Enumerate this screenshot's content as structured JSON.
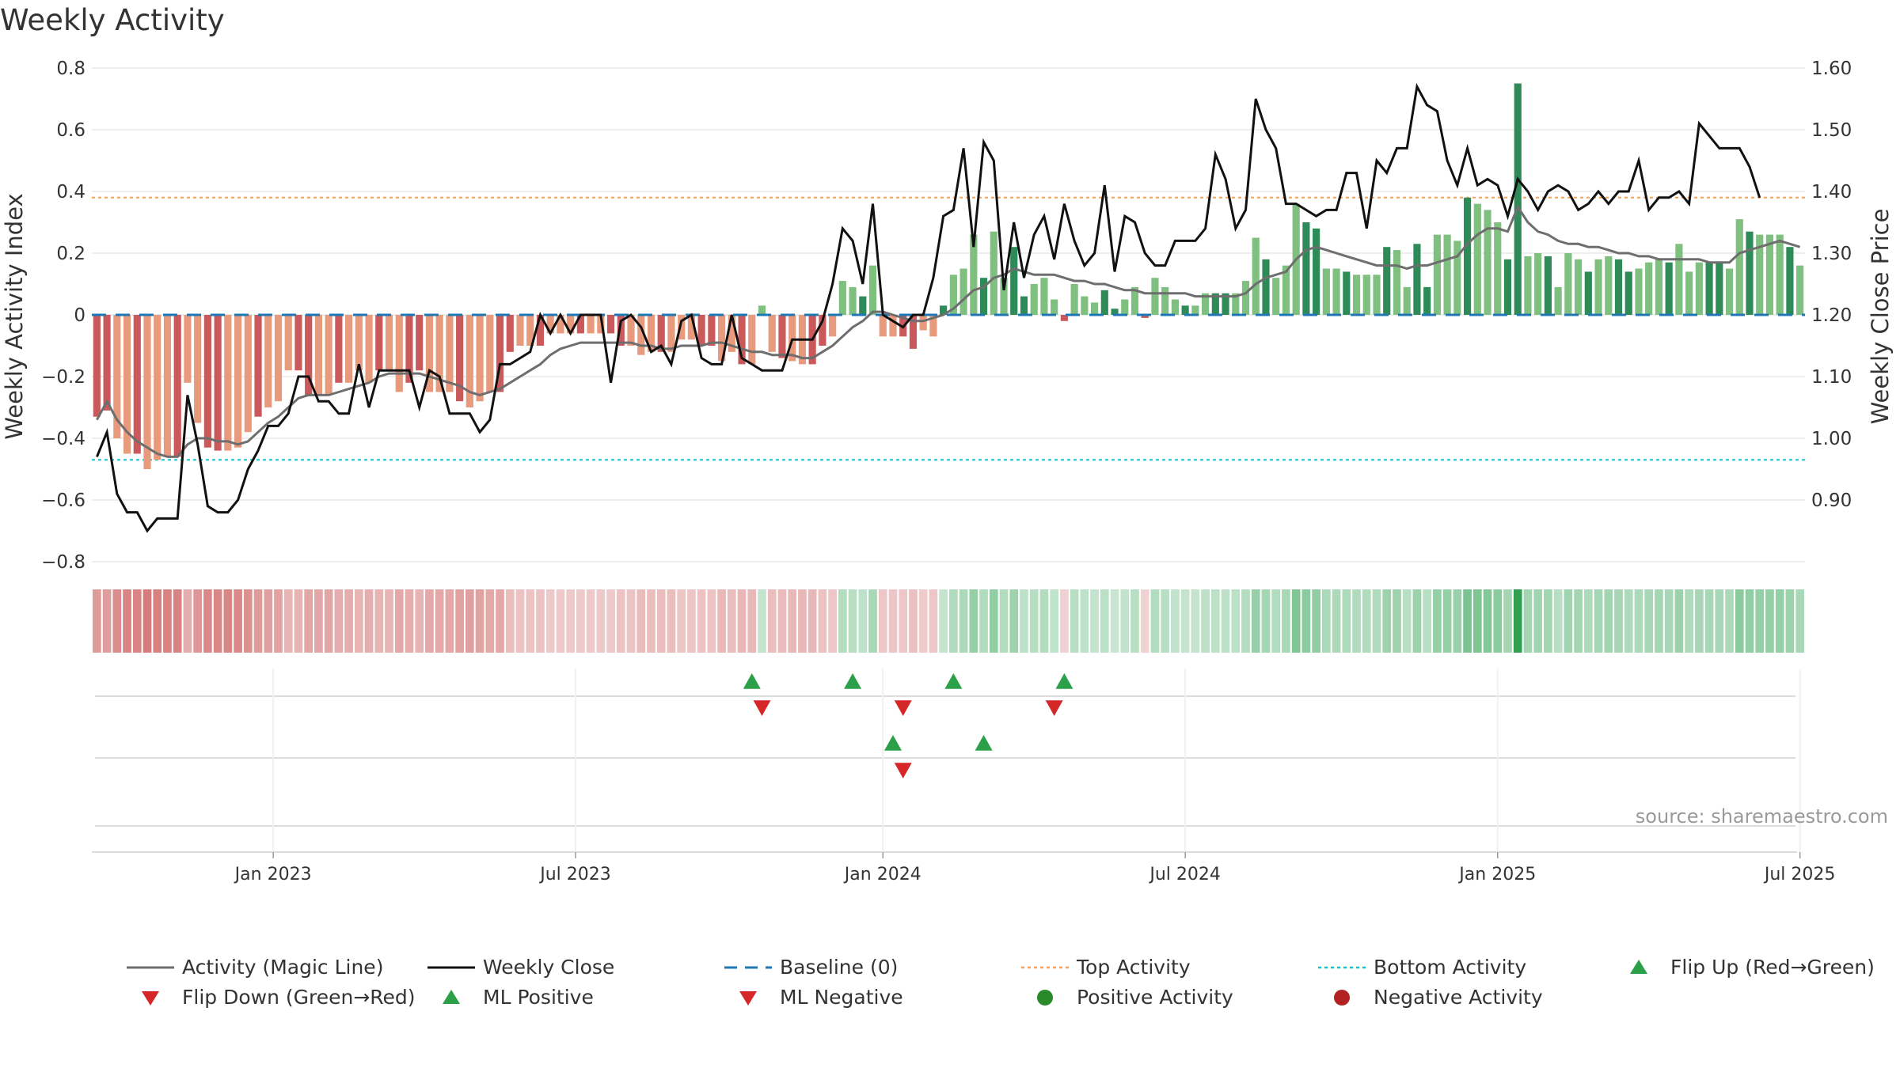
{
  "title": "Weekly Activity",
  "source": "source: sharemaestro.com",
  "colors": {
    "pos_dark": "#2e8b57",
    "pos_light": "#7fbf7f",
    "neg_dark": "#c9595a",
    "neg_light": "#e89a7c",
    "magic": "#6e6e6e",
    "close": "#111111",
    "baseline": "#1f77b4",
    "top": "#f5a25d",
    "bottom": "#17c3cc",
    "flip_up": "#2ca048",
    "flip_down": "#d62728"
  },
  "chart_data": {
    "type": "bar",
    "title": "Weekly Activity",
    "ylabel": "Weekly Activity Index",
    "y2label": "Weekly Close Price",
    "ylim": [
      -0.8,
      0.8
    ],
    "y2lim": [
      0.8,
      1.6
    ],
    "yticks": [
      "0.8",
      "0.6",
      "0.4",
      "0.2",
      "0",
      "−0.2",
      "−0.4",
      "−0.6",
      "−0.8"
    ],
    "y2ticks": [
      "1.60",
      "1.50",
      "1.40",
      "1.30",
      "1.20",
      "1.10",
      "1.00",
      "0.90"
    ],
    "top_activity": 0.38,
    "bottom_activity": -0.47,
    "baseline": 0,
    "date_labels": [
      "Jan 2023",
      "Jul 2023",
      "Jan 2024",
      "Jul 2024",
      "Jan 2025",
      "Jul 2025"
    ],
    "date_label_weeks": [
      17.5,
      47.5,
      78,
      108,
      139,
      169
    ],
    "activity": [
      -0.33,
      -0.31,
      -0.4,
      -0.45,
      -0.45,
      -0.5,
      -0.47,
      -0.46,
      -0.46,
      -0.22,
      -0.35,
      -0.43,
      -0.44,
      -0.44,
      -0.43,
      -0.38,
      -0.33,
      -0.3,
      -0.28,
      -0.18,
      -0.18,
      -0.26,
      -0.26,
      -0.26,
      -0.22,
      -0.22,
      -0.18,
      -0.22,
      -0.18,
      -0.18,
      -0.25,
      -0.22,
      -0.18,
      -0.25,
      -0.25,
      -0.25,
      -0.28,
      -0.3,
      -0.28,
      -0.25,
      -0.25,
      -0.12,
      -0.1,
      -0.1,
      -0.1,
      -0.06,
      -0.06,
      -0.06,
      -0.06,
      -0.06,
      -0.06,
      -0.06,
      -0.1,
      -0.1,
      -0.13,
      -0.12,
      -0.12,
      -0.12,
      -0.08,
      -0.08,
      -0.1,
      -0.1,
      -0.15,
      -0.12,
      -0.16,
      -0.16,
      0.03,
      -0.12,
      -0.14,
      -0.15,
      -0.16,
      -0.16,
      -0.1,
      -0.07,
      0.11,
      0.09,
      0.06,
      0.16,
      -0.07,
      -0.07,
      -0.07,
      -0.11,
      -0.05,
      -0.07,
      0.03,
      0.13,
      0.15,
      0.26,
      0.12,
      0.27,
      0.12,
      0.22,
      0.06,
      0.1,
      0.12,
      0.05,
      -0.02,
      0.1,
      0.06,
      0.04,
      0.08,
      0.02,
      0.05,
      0.09,
      -0.01,
      0.12,
      0.09,
      0.05,
      0.03,
      0.03,
      0.07,
      0.07,
      0.07,
      0.07,
      0.11,
      0.25,
      0.18,
      0.12,
      0.16,
      0.36,
      0.3,
      0.28,
      0.15,
      0.15,
      0.14,
      0.13,
      0.13,
      0.13,
      0.22,
      0.21,
      0.09,
      0.23,
      0.09,
      0.26,
      0.26,
      0.24,
      0.38,
      0.36,
      0.34,
      0.3,
      0.18,
      0.75,
      0.19,
      0.2,
      0.19,
      0.09,
      0.2,
      0.18,
      0.14,
      0.18,
      0.19,
      0.18,
      0.14,
      0.15,
      0.17,
      0.18,
      0.17,
      0.23,
      0.14,
      0.17,
      0.17,
      0.17,
      0.15,
      0.31,
      0.27,
      0.26,
      0.26,
      0.26,
      0.22,
      0.16
    ],
    "magic_line": [
      -0.34,
      -0.28,
      -0.34,
      -0.38,
      -0.41,
      -0.43,
      -0.45,
      -0.46,
      -0.46,
      -0.42,
      -0.4,
      -0.4,
      -0.41,
      -0.41,
      -0.42,
      -0.41,
      -0.38,
      -0.35,
      -0.33,
      -0.3,
      -0.27,
      -0.26,
      -0.26,
      -0.26,
      -0.25,
      -0.24,
      -0.23,
      -0.22,
      -0.2,
      -0.19,
      -0.19,
      -0.19,
      -0.19,
      -0.2,
      -0.21,
      -0.22,
      -0.23,
      -0.25,
      -0.26,
      -0.25,
      -0.24,
      -0.22,
      -0.2,
      -0.18,
      -0.16,
      -0.13,
      -0.11,
      -0.1,
      -0.09,
      -0.09,
      -0.09,
      -0.09,
      -0.09,
      -0.09,
      -0.1,
      -0.1,
      -0.11,
      -0.11,
      -0.1,
      -0.1,
      -0.1,
      -0.09,
      -0.09,
      -0.1,
      -0.11,
      -0.12,
      -0.12,
      -0.13,
      -0.13,
      -0.13,
      -0.14,
      -0.14,
      -0.12,
      -0.1,
      -0.07,
      -0.04,
      -0.02,
      0.01,
      0.01,
      0.0,
      -0.01,
      -0.02,
      -0.02,
      -0.01,
      0.0,
      0.02,
      0.05,
      0.08,
      0.09,
      0.12,
      0.13,
      0.15,
      0.14,
      0.13,
      0.13,
      0.13,
      0.12,
      0.11,
      0.11,
      0.1,
      0.1,
      0.09,
      0.08,
      0.08,
      0.07,
      0.07,
      0.07,
      0.07,
      0.07,
      0.06,
      0.06,
      0.06,
      0.06,
      0.06,
      0.07,
      0.1,
      0.12,
      0.13,
      0.14,
      0.18,
      0.21,
      0.22,
      0.21,
      0.2,
      0.19,
      0.18,
      0.17,
      0.16,
      0.16,
      0.16,
      0.15,
      0.16,
      0.16,
      0.17,
      0.18,
      0.19,
      0.23,
      0.26,
      0.28,
      0.28,
      0.27,
      0.35,
      0.3,
      0.27,
      0.26,
      0.24,
      0.23,
      0.23,
      0.22,
      0.22,
      0.21,
      0.2,
      0.2,
      0.19,
      0.19,
      0.18,
      0.18,
      0.18,
      0.18,
      0.18,
      0.17,
      0.17,
      0.17,
      0.2,
      0.21,
      0.22,
      0.23,
      0.24,
      0.23,
      0.22
    ],
    "weekly_close": [
      0.97,
      1.01,
      0.91,
      0.88,
      0.88,
      0.85,
      0.87,
      0.87,
      0.87,
      1.07,
      0.99,
      0.89,
      0.88,
      0.88,
      0.9,
      0.95,
      0.98,
      1.02,
      1.02,
      1.04,
      1.1,
      1.1,
      1.06,
      1.06,
      1.04,
      1.04,
      1.12,
      1.05,
      1.11,
      1.11,
      1.11,
      1.11,
      1.05,
      1.11,
      1.1,
      1.04,
      1.04,
      1.04,
      1.01,
      1.03,
      1.12,
      1.12,
      1.13,
      1.14,
      1.2,
      1.17,
      1.2,
      1.17,
      1.2,
      1.2,
      1.2,
      1.09,
      1.19,
      1.2,
      1.18,
      1.14,
      1.15,
      1.12,
      1.19,
      1.2,
      1.13,
      1.12,
      1.12,
      1.2,
      1.13,
      1.12,
      1.11,
      1.11,
      1.11,
      1.16,
      1.16,
      1.16,
      1.19,
      1.25,
      1.34,
      1.32,
      1.25,
      1.38,
      1.2,
      1.19,
      1.18,
      1.2,
      1.2,
      1.26,
      1.36,
      1.37,
      1.47,
      1.31,
      1.48,
      1.45,
      1.24,
      1.35,
      1.26,
      1.33,
      1.36,
      1.29,
      1.38,
      1.32,
      1.28,
      1.3,
      1.41,
      1.27,
      1.36,
      1.35,
      1.3,
      1.28,
      1.28,
      1.32,
      1.32,
      1.32,
      1.34,
      1.46,
      1.42,
      1.34,
      1.37,
      1.55,
      1.5,
      1.47,
      1.38,
      1.38,
      1.37,
      1.36,
      1.37,
      1.37,
      1.43,
      1.43,
      1.34,
      1.45,
      1.43,
      1.47,
      1.47,
      1.57,
      1.54,
      1.53,
      1.45,
      1.41,
      1.47,
      1.41,
      1.42,
      1.41,
      1.36,
      1.42,
      1.4,
      1.37,
      1.4,
      1.41,
      1.4,
      1.37,
      1.38,
      1.4,
      1.38,
      1.4,
      1.4,
      1.45,
      1.37,
      1.39,
      1.39,
      1.4,
      1.38,
      1.51,
      1.49,
      1.47,
      1.47,
      1.47,
      1.44,
      1.39
    ],
    "flip_up_weeks": [
      65,
      75,
      85,
      96
    ],
    "flip_down_weeks": [
      66,
      80,
      95
    ],
    "ml_positive_weeks": [
      79,
      88
    ],
    "ml_negative_weeks": [
      80
    ],
    "legend": [
      {
        "key": "magic",
        "label": "Activity (Magic Line)"
      },
      {
        "key": "close",
        "label": "Weekly Close"
      },
      {
        "key": "baseline",
        "label": "Baseline (0)"
      },
      {
        "key": "top",
        "label": "Top Activity"
      },
      {
        "key": "bottom",
        "label": "Bottom Activity"
      },
      {
        "key": "flip_up",
        "label": "Flip Up (Red→Green)"
      },
      {
        "key": "flip_down",
        "label": "Flip Down (Green→Red)"
      },
      {
        "key": "ml_pos",
        "label": "ML Positive"
      },
      {
        "key": "ml_neg",
        "label": "ML Negative"
      },
      {
        "key": "pos",
        "label": "Positive Activity"
      },
      {
        "key": "neg",
        "label": "Negative Activity"
      }
    ]
  }
}
